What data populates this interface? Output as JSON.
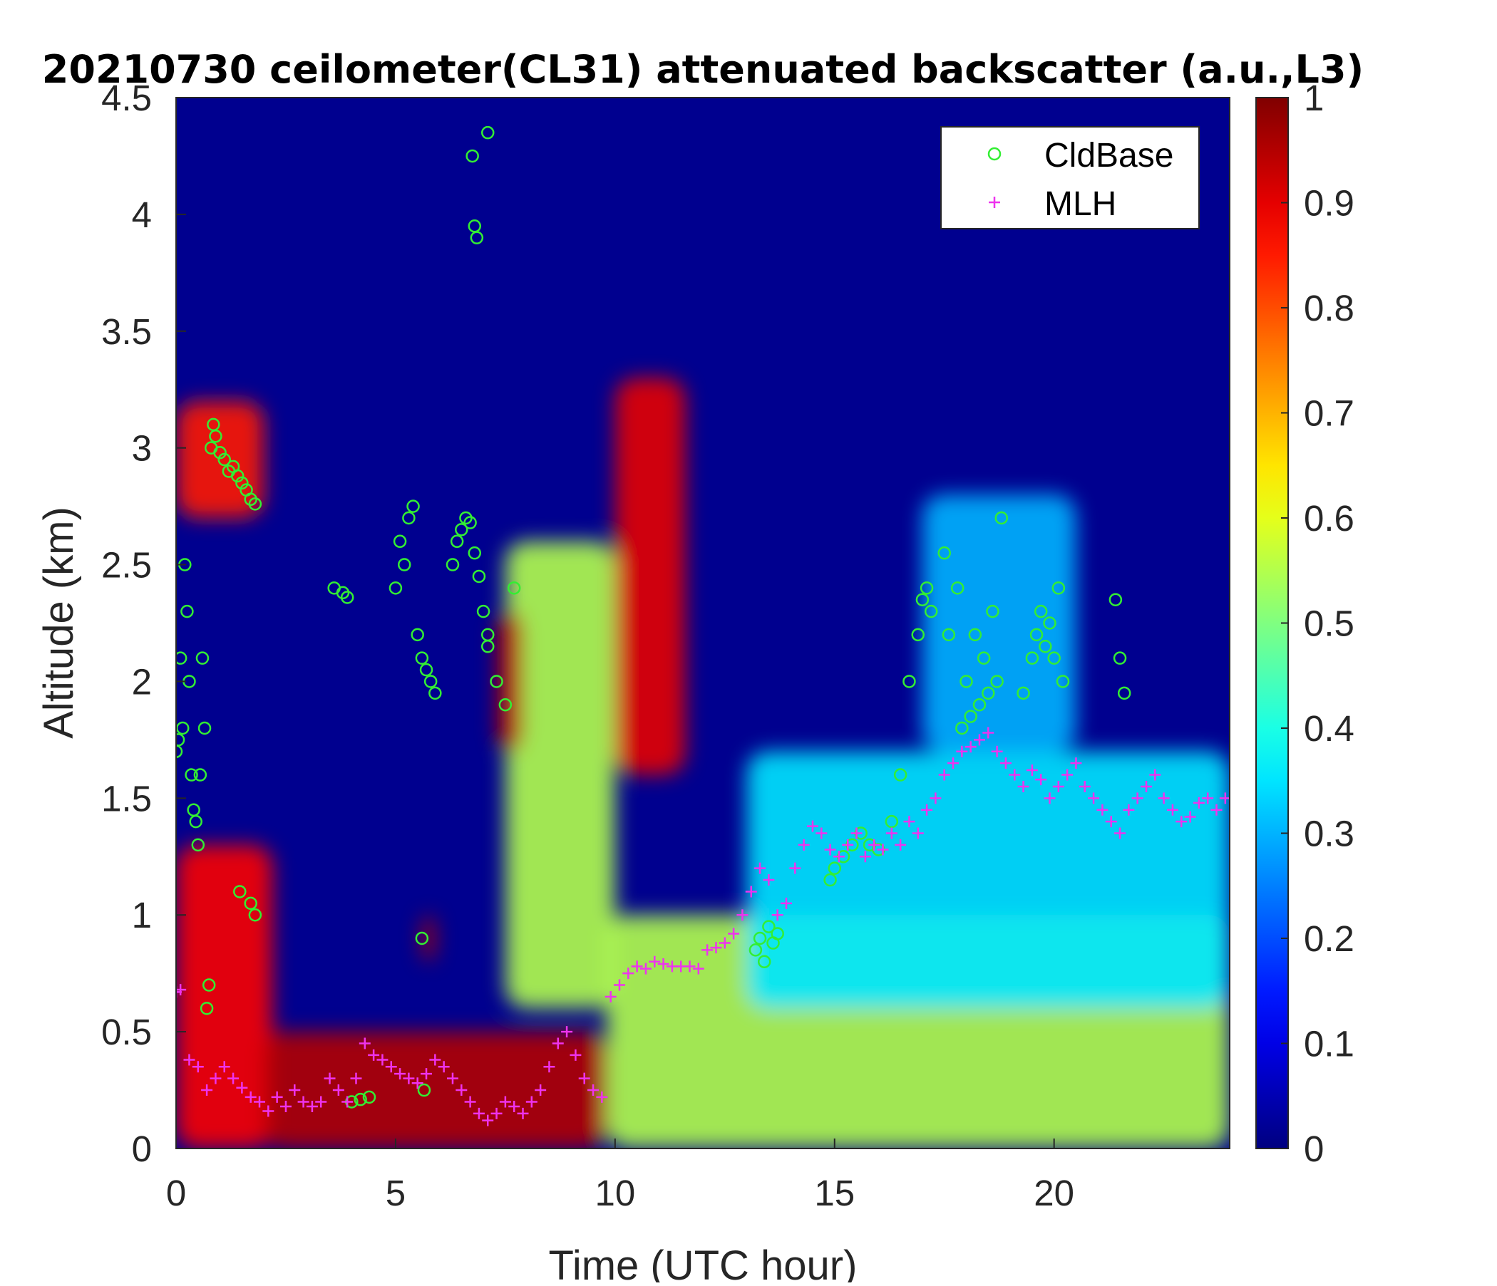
{
  "chart_data": {
    "type": "heatmap",
    "title": "20210730 ceilometer(CL31) attenuated backscatter (a.u.,L3)",
    "xlabel": "Time (UTC hour)",
    "ylabel": "Altitude (km)",
    "xlim": [
      0,
      24
    ],
    "ylim": [
      0,
      4.5
    ],
    "xticks": [
      "0",
      "5",
      "10",
      "15",
      "20"
    ],
    "xtick_values": [
      0,
      5,
      10,
      15,
      20
    ],
    "yticks": [
      "0",
      "0.5",
      "1",
      "1.5",
      "2",
      "2.5",
      "3",
      "3.5",
      "4",
      "4.5"
    ],
    "ytick_values": [
      0,
      0.5,
      1,
      1.5,
      2,
      2.5,
      3,
      3.5,
      4,
      4.5
    ],
    "colorbar": {
      "colormap": "jet",
      "range": [
        0,
        1
      ],
      "ticks": [
        "0",
        "0.1",
        "0.2",
        "0.3",
        "0.4",
        "0.5",
        "0.6",
        "0.7",
        "0.8",
        "0.9",
        "1"
      ],
      "tick_values": [
        0,
        0.1,
        0.2,
        0.3,
        0.4,
        0.5,
        0.6,
        0.7,
        0.8,
        0.9,
        1
      ]
    },
    "legend": {
      "placement": "top-right",
      "entries": [
        {
          "label": "CldBase",
          "marker": "circle",
          "color": "#33ee33"
        },
        {
          "label": "MLH",
          "marker": "plus",
          "color": "#ee33ee"
        }
      ]
    },
    "features": [
      {
        "t0": 0.0,
        "t1": 2.2,
        "z0": 0.0,
        "z1": 1.3,
        "value": 0.88
      },
      {
        "t0": 2.0,
        "t1": 9.8,
        "z0": 0.0,
        "z1": 0.5,
        "value": 0.95
      },
      {
        "t0": 9.8,
        "t1": 24.0,
        "z0": 0.0,
        "z1": 1.0,
        "value": 0.55
      },
      {
        "t0": 13.0,
        "t1": 24.0,
        "z0": 0.6,
        "z1": 1.7,
        "value": 0.35
      },
      {
        "t0": 7.5,
        "t1": 10.0,
        "z0": 0.6,
        "z1": 2.6,
        "value": 0.55
      },
      {
        "t0": 10.0,
        "t1": 11.6,
        "z0": 1.6,
        "z1": 3.3,
        "value": 0.9
      },
      {
        "t0": 0.0,
        "t1": 2.0,
        "z0": 2.7,
        "z1": 3.2,
        "value": 0.85
      },
      {
        "t0": 7.3,
        "t1": 7.9,
        "z0": 1.7,
        "z1": 2.3,
        "value": 0.95
      },
      {
        "t0": 5.6,
        "t1": 5.9,
        "z0": 0.8,
        "z1": 1.0,
        "value": 0.95
      },
      {
        "t0": 17.0,
        "t1": 20.5,
        "z0": 1.7,
        "z1": 2.8,
        "value": 0.3
      }
    ],
    "series": [
      {
        "name": "CldBase",
        "x": [
          0.0,
          0.05,
          0.1,
          0.15,
          0.2,
          0.25,
          0.3,
          0.35,
          0.4,
          0.45,
          0.5,
          0.55,
          0.6,
          0.65,
          0.7,
          0.75,
          0.8,
          0.85,
          0.9,
          1.0,
          1.1,
          1.2,
          1.3,
          1.4,
          1.5,
          1.6,
          1.7,
          1.8,
          1.45,
          1.7,
          1.8,
          3.6,
          3.8,
          3.9,
          4.0,
          4.2,
          4.4,
          5.0,
          5.1,
          5.2,
          5.3,
          5.4,
          5.5,
          5.6,
          5.7,
          5.8,
          5.9,
          5.6,
          5.65,
          6.3,
          6.4,
          6.5,
          6.6,
          6.7,
          6.8,
          6.9,
          7.0,
          7.1,
          6.75,
          6.8,
          6.85,
          7.1,
          7.1,
          7.3,
          7.5,
          7.7,
          13.2,
          13.3,
          13.4,
          13.5,
          13.6,
          13.7,
          14.9,
          15.0,
          15.2,
          15.4,
          15.6,
          15.8,
          16.0,
          16.3,
          16.5,
          16.7,
          16.9,
          17.0,
          17.1,
          17.2,
          17.5,
          17.6,
          17.8,
          17.9,
          18.0,
          18.1,
          18.2,
          18.3,
          18.4,
          18.5,
          18.6,
          18.7,
          18.8,
          19.3,
          19.5,
          19.6,
          19.7,
          19.8,
          19.9,
          20.0,
          20.1,
          20.2,
          21.4,
          21.5,
          21.6
        ],
        "y": [
          1.7,
          1.75,
          2.1,
          1.8,
          2.5,
          2.3,
          2.0,
          1.6,
          1.45,
          1.4,
          1.3,
          1.6,
          2.1,
          1.8,
          0.6,
          0.7,
          3.0,
          3.1,
          3.05,
          2.98,
          2.95,
          2.9,
          2.92,
          2.88,
          2.85,
          2.82,
          2.78,
          2.76,
          1.1,
          1.05,
          1.0,
          2.4,
          2.38,
          2.36,
          0.2,
          0.21,
          0.22,
          2.4,
          2.6,
          2.5,
          2.7,
          2.75,
          2.2,
          2.1,
          2.05,
          2.0,
          1.95,
          0.9,
          0.25,
          2.5,
          2.6,
          2.65,
          2.7,
          2.68,
          2.55,
          2.45,
          2.3,
          2.2,
          4.25,
          3.95,
          3.9,
          4.35,
          2.15,
          2.0,
          1.9,
          2.4,
          0.85,
          0.9,
          0.8,
          0.95,
          0.88,
          0.92,
          1.15,
          1.2,
          1.25,
          1.3,
          1.35,
          1.3,
          1.28,
          1.4,
          1.6,
          2.0,
          2.2,
          2.35,
          2.4,
          2.3,
          2.55,
          2.2,
          2.4,
          1.8,
          2.0,
          1.85,
          2.2,
          1.9,
          2.1,
          1.95,
          2.3,
          2.0,
          2.7,
          1.95,
          2.1,
          2.2,
          2.3,
          2.15,
          2.25,
          2.1,
          2.4,
          2.0,
          2.35,
          2.1,
          1.95
        ]
      },
      {
        "name": "MLH",
        "x": [
          0.0,
          0.1,
          0.3,
          0.5,
          0.7,
          0.9,
          1.1,
          1.3,
          1.5,
          1.7,
          1.9,
          2.1,
          2.3,
          2.5,
          2.7,
          2.9,
          3.1,
          3.3,
          3.5,
          3.7,
          3.9,
          4.1,
          4.3,
          4.5,
          4.7,
          4.9,
          5.1,
          5.3,
          5.5,
          5.7,
          5.9,
          6.1,
          6.3,
          6.5,
          6.7,
          6.9,
          7.1,
          7.3,
          7.5,
          7.7,
          7.9,
          8.1,
          8.3,
          8.5,
          8.7,
          8.9,
          9.1,
          9.3,
          9.5,
          9.7,
          9.9,
          10.1,
          10.3,
          10.5,
          10.7,
          10.9,
          11.1,
          11.3,
          11.5,
          11.7,
          11.9,
          12.1,
          12.3,
          12.5,
          12.7,
          12.9,
          13.1,
          13.3,
          13.5,
          13.7,
          13.9,
          14.1,
          14.3,
          14.5,
          14.7,
          14.9,
          15.1,
          15.3,
          15.5,
          15.7,
          15.9,
          16.1,
          16.3,
          16.5,
          16.7,
          16.9,
          17.1,
          17.3,
          17.5,
          17.7,
          17.9,
          18.1,
          18.3,
          18.5,
          18.7,
          18.9,
          19.1,
          19.3,
          19.5,
          19.7,
          19.9,
          20.1,
          20.3,
          20.5,
          20.7,
          20.9,
          21.1,
          21.3,
          21.5,
          21.7,
          21.9,
          22.1,
          22.3,
          22.5,
          22.7,
          22.9,
          23.1,
          23.3,
          23.5,
          23.7,
          23.9
        ],
        "y": [
          0.67,
          0.68,
          0.38,
          0.35,
          0.25,
          0.3,
          0.35,
          0.3,
          0.26,
          0.22,
          0.2,
          0.16,
          0.22,
          0.18,
          0.25,
          0.2,
          0.18,
          0.2,
          0.3,
          0.25,
          0.2,
          0.3,
          0.45,
          0.4,
          0.38,
          0.35,
          0.32,
          0.3,
          0.28,
          0.32,
          0.38,
          0.35,
          0.3,
          0.25,
          0.2,
          0.15,
          0.12,
          0.15,
          0.2,
          0.18,
          0.15,
          0.2,
          0.25,
          0.35,
          0.45,
          0.5,
          0.4,
          0.3,
          0.25,
          0.22,
          0.65,
          0.7,
          0.75,
          0.78,
          0.77,
          0.8,
          0.79,
          0.78,
          0.78,
          0.78,
          0.77,
          0.85,
          0.86,
          0.88,
          0.92,
          1.0,
          1.1,
          1.2,
          1.15,
          1.0,
          1.05,
          1.2,
          1.3,
          1.38,
          1.35,
          1.28,
          1.25,
          1.3,
          1.35,
          1.25,
          1.3,
          1.28,
          1.35,
          1.3,
          1.4,
          1.35,
          1.45,
          1.5,
          1.6,
          1.65,
          1.7,
          1.72,
          1.75,
          1.78,
          1.7,
          1.65,
          1.6,
          1.55,
          1.62,
          1.58,
          1.5,
          1.55,
          1.6,
          1.65,
          1.55,
          1.5,
          1.45,
          1.4,
          1.35,
          1.45,
          1.5,
          1.55,
          1.6,
          1.5,
          1.45,
          1.4,
          1.42,
          1.48,
          1.5,
          1.45,
          1.5
        ]
      }
    ]
  }
}
